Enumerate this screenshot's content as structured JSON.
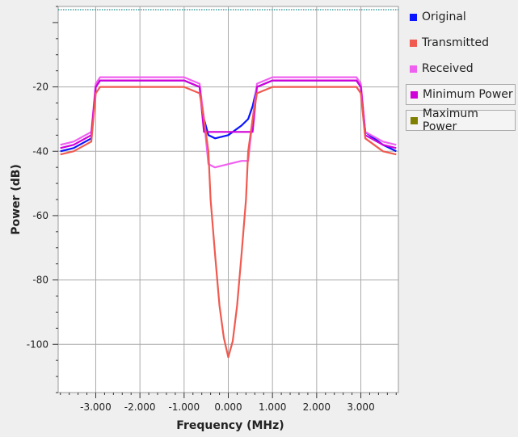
{
  "chart_data": {
    "type": "line",
    "xlabel": "Frequency (MHz)",
    "ylabel": "Power (dB)",
    "xlim": [
      -3.85,
      3.85
    ],
    "ylim": [
      -115,
      5
    ],
    "x_ticks": [
      "-3.000",
      "-2.000",
      "-1.000",
      "0.000",
      "1.000",
      "2.000",
      "3.000"
    ],
    "x_tick_values": [
      -3,
      -2,
      -1,
      0,
      1,
      2,
      3
    ],
    "y_ticks": [
      "-20",
      "-40",
      "-60",
      "-80",
      "-100"
    ],
    "y_tick_values": [
      -20,
      -40,
      -60,
      -80,
      -100
    ],
    "grid": true,
    "legend_position": "right",
    "reference_line_y": 4,
    "series": [
      {
        "name": "Original",
        "color": "#0a14ff",
        "x": [
          -3.8,
          -3.5,
          -3.1,
          -3.0,
          -2.9,
          -2.0,
          -1.0,
          -0.65,
          -0.55,
          -0.45,
          -0.3,
          0.0,
          0.3,
          0.45,
          0.55,
          0.65,
          1.0,
          2.0,
          2.9,
          3.0,
          3.1,
          3.5,
          3.8
        ],
        "y": [
          -40,
          -39,
          -36,
          -20,
          -18,
          -18,
          -18,
          -20,
          -30,
          -35,
          -36,
          -35,
          -32,
          -30,
          -26,
          -20,
          -18,
          -18,
          -18,
          -20,
          -34,
          -38,
          -40
        ]
      },
      {
        "name": "Transmitted",
        "color": "#f05a50",
        "x": [
          -3.8,
          -3.5,
          -3.1,
          -3.0,
          -2.9,
          -2.0,
          -1.0,
          -0.65,
          -0.55,
          -0.45,
          -0.4,
          -0.3,
          -0.2,
          -0.1,
          0.0,
          0.1,
          0.2,
          0.3,
          0.4,
          0.45,
          0.55,
          0.65,
          1.0,
          2.0,
          2.9,
          3.0,
          3.1,
          3.5,
          3.8
        ],
        "y": [
          -41,
          -40,
          -37,
          -22,
          -20,
          -20,
          -20,
          -22,
          -30,
          -40,
          -55,
          -72,
          -88,
          -98,
          -104,
          -99,
          -88,
          -72,
          -55,
          -40,
          -30,
          -22,
          -20,
          -20,
          -20,
          -22,
          -36,
          -40,
          -41
        ]
      },
      {
        "name": "Received",
        "color": "#f060f0",
        "x": [
          -3.8,
          -3.5,
          -3.1,
          -3.0,
          -2.9,
          -2.0,
          -1.0,
          -0.65,
          -0.55,
          -0.45,
          -0.3,
          0.0,
          0.3,
          0.45,
          0.55,
          0.65,
          1.0,
          2.0,
          2.9,
          3.0,
          3.1,
          3.5,
          3.8
        ],
        "y": [
          -38,
          -37,
          -34,
          -19,
          -17,
          -17,
          -17,
          -19,
          -30,
          -44,
          -45,
          -44,
          -43,
          -43,
          -30,
          -19,
          -17,
          -17,
          -17,
          -19,
          -34,
          -37,
          -38
        ]
      },
      {
        "name": "Minimum Power",
        "color": "#d000d8",
        "x": [
          -3.8,
          -3.5,
          -3.1,
          -3.0,
          -2.9,
          -2.0,
          -1.0,
          -0.65,
          -0.55,
          0.55,
          0.65,
          1.0,
          2.0,
          2.9,
          3.0,
          3.1,
          3.5,
          3.8
        ],
        "y": [
          -39,
          -38,
          -35,
          -20,
          -18,
          -18,
          -18,
          -20,
          -34,
          -34,
          -20,
          -18,
          -18,
          -18,
          -20,
          -35,
          -38,
          -39
        ]
      },
      {
        "name": "Maximum Power",
        "color": "#808000",
        "x": [],
        "y": []
      }
    ]
  },
  "legend": {
    "items": [
      {
        "label": "Original",
        "color": "#0a14ff"
      },
      {
        "label": "Transmitted",
        "color": "#f05a50"
      },
      {
        "label": "Received",
        "color": "#f060f0"
      },
      {
        "label": "Minimum Power",
        "color": "#d000d8"
      },
      {
        "label": "Maximum Power",
        "color": "#808000"
      }
    ]
  }
}
